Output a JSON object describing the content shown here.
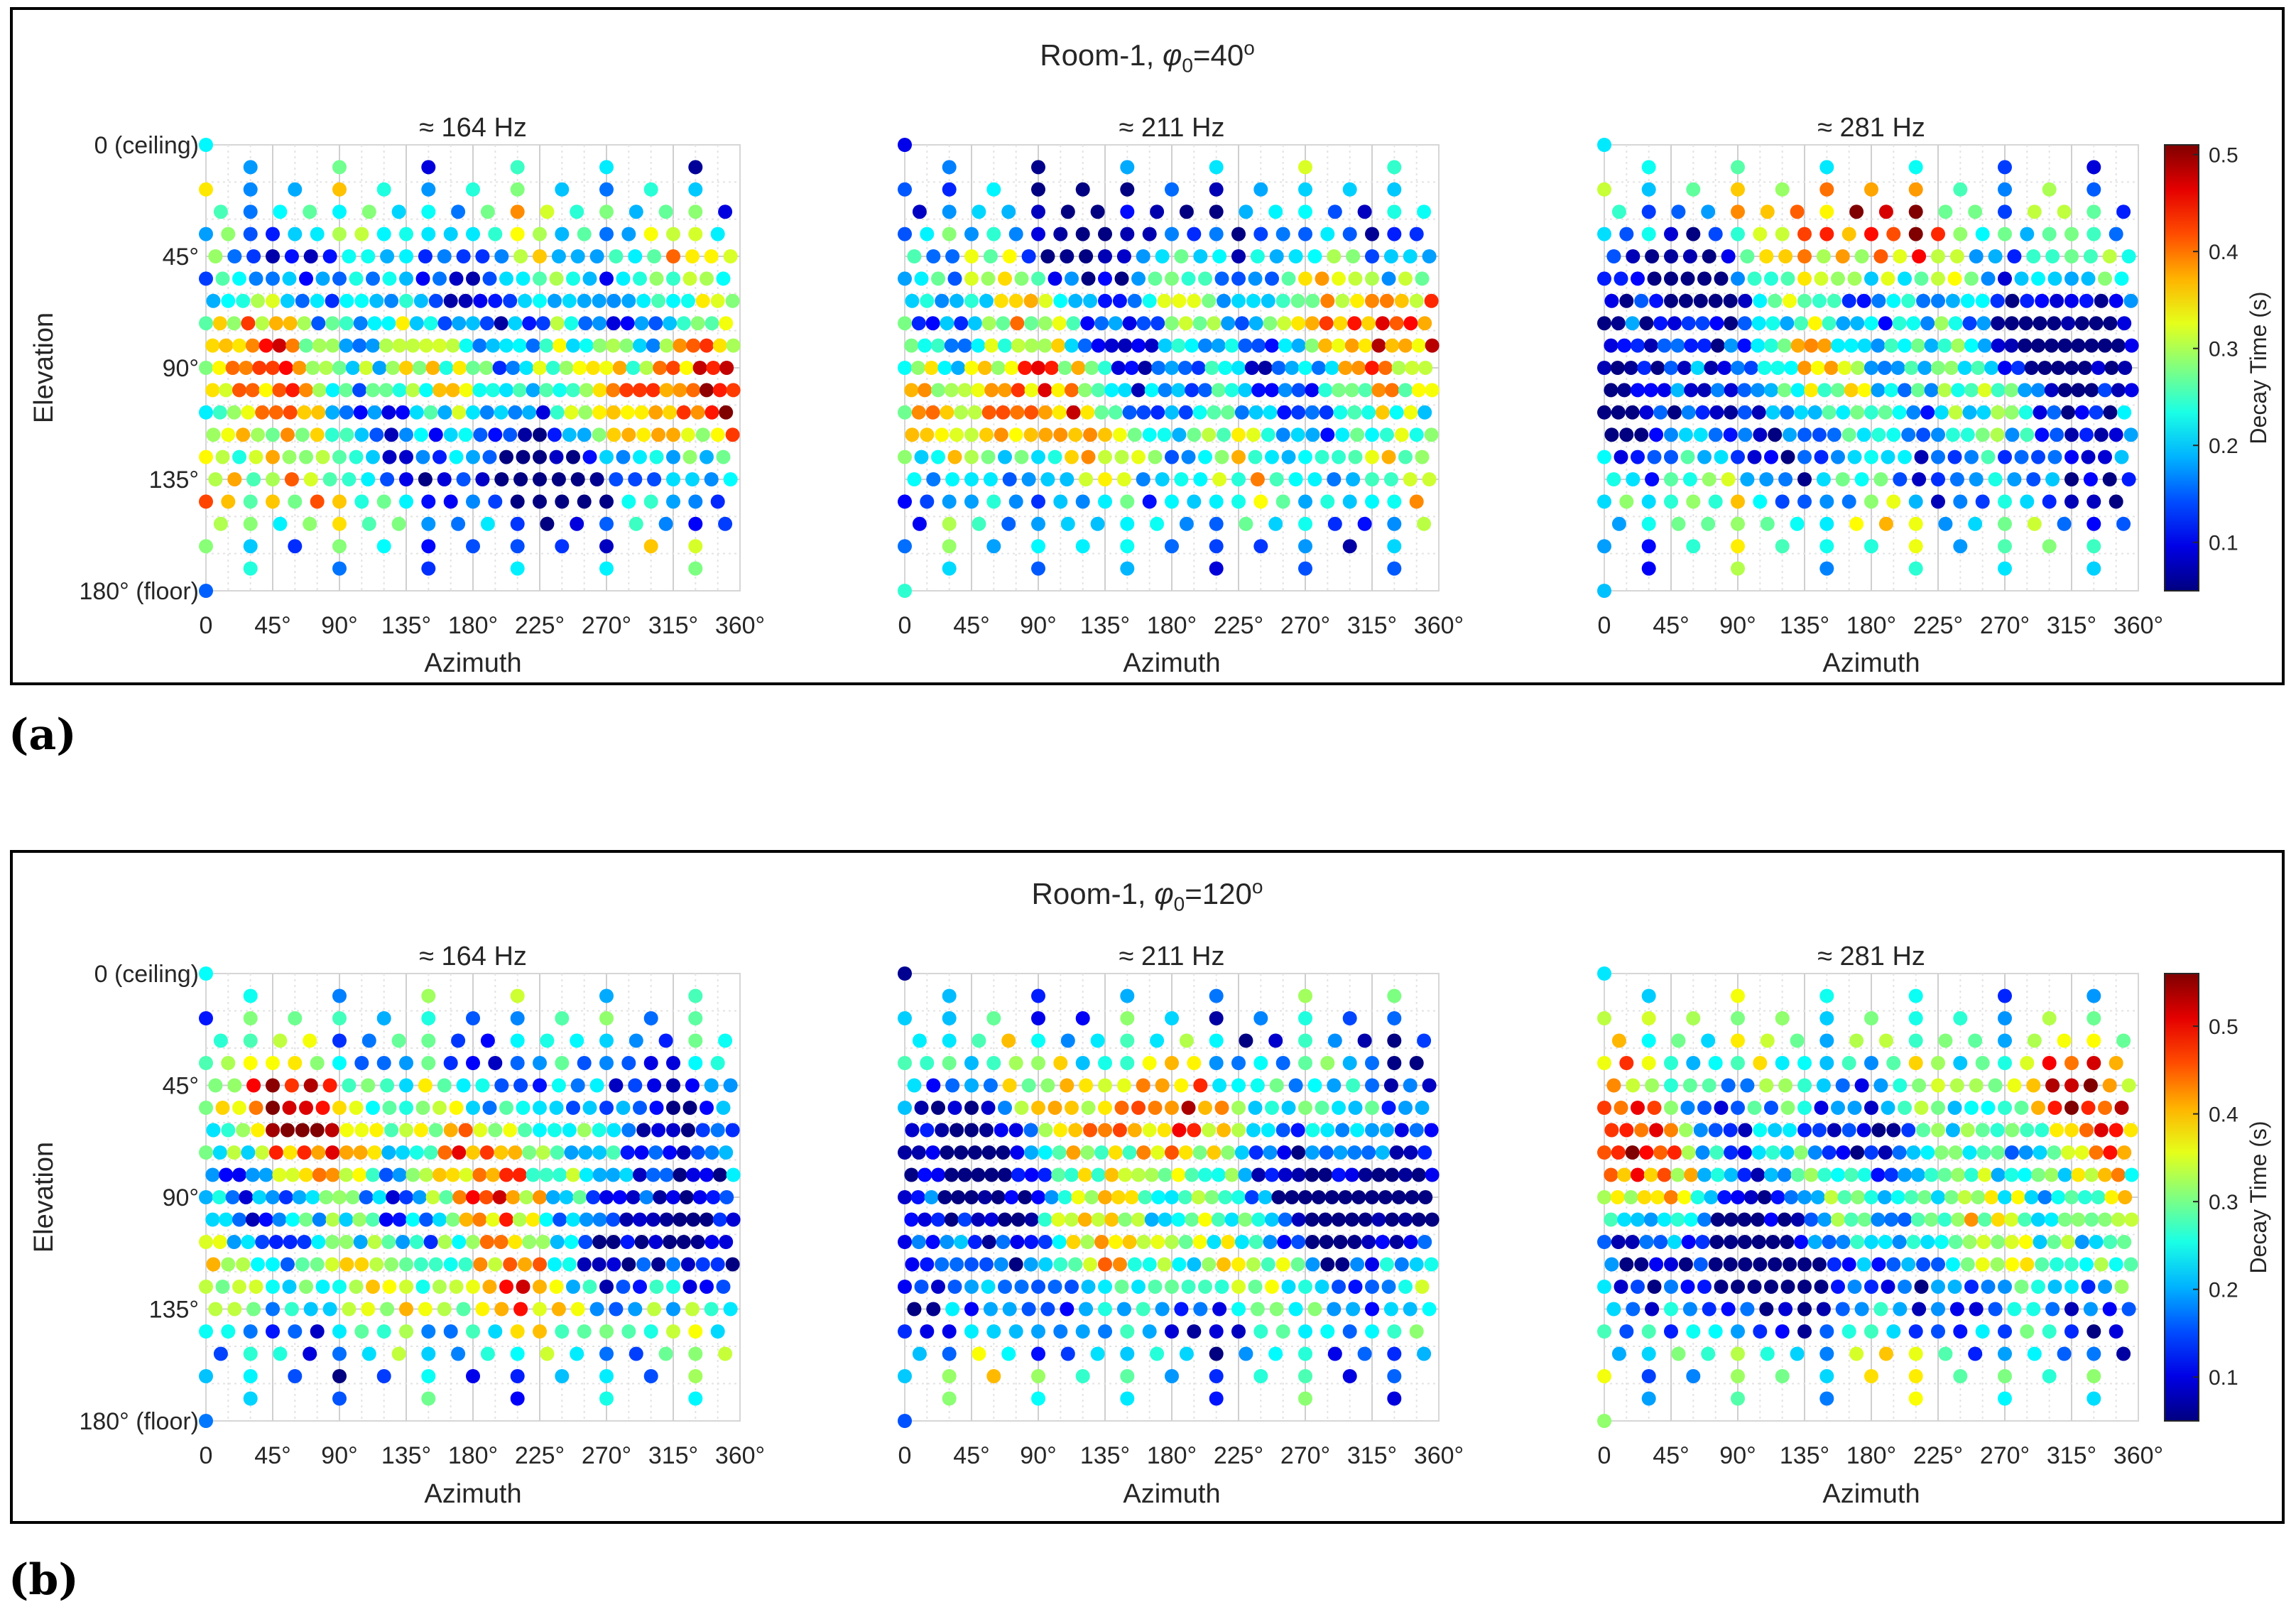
{
  "chart_data": [
    {
      "type": "scatter",
      "panel_label": "(a)",
      "title": "Room-1, φ0=40°",
      "title_parts": {
        "prefix": "Room-1, ",
        "symbol": "φ",
        "subscript": "0",
        "suffix": "=40",
        "superscript": "o"
      },
      "xlabel": "Azimuth",
      "ylabel": "Elevation",
      "xlim": [
        0,
        360
      ],
      "ylim": [
        0,
        180
      ],
      "xticks": [
        "0",
        "45°",
        "90°",
        "135°",
        "180°",
        "225°",
        "270°",
        "315°",
        "360°"
      ],
      "yticks": [
        "0 (ceiling)",
        "45°",
        "90°",
        "135°",
        "180° (floor)"
      ],
      "colorbar": {
        "label": "Decay Time (s)",
        "range": [
          0.05,
          0.51
        ],
        "ticks": [
          "0.1",
          "0.2",
          "0.3",
          "0.4",
          "0.5"
        ],
        "tick_values": [
          0.1,
          0.2,
          0.3,
          0.4,
          0.5
        ]
      },
      "subplots": [
        {
          "title": "≈ 164 Hz",
          "seed": 11,
          "hot_peaks": [
            {
              "az": 20,
              "el": 110
            },
            {
              "az": 330,
              "el": 100
            }
          ],
          "cold_peaks": [
            {
              "az": 220,
              "el": 150
            }
          ]
        },
        {
          "title": "≈ 211 Hz",
          "seed": 23,
          "hot_peaks": [
            {
              "az": 80,
              "el": 90
            },
            {
              "az": 350,
              "el": 80
            }
          ],
          "cold_peaks": [
            {
              "az": 120,
              "el": 40
            }
          ]
        },
        {
          "title": "≈ 281 Hz",
          "seed": 37,
          "hot_peaks": [
            {
              "az": 170,
              "el": 30
            }
          ],
          "cold_peaks": [
            {
              "az": 30,
              "el": 80
            },
            {
              "az": 330,
              "el": 90
            }
          ]
        }
      ]
    },
    {
      "type": "scatter",
      "panel_label": "(b)",
      "title": "Room-1, φ0=120°",
      "title_parts": {
        "prefix": "Room-1, ",
        "symbol": "φ",
        "subscript": "0",
        "suffix": "=120",
        "superscript": "o"
      },
      "xlabel": "Azimuth",
      "ylabel": "Elevation",
      "xlim": [
        0,
        360
      ],
      "ylim": [
        0,
        180
      ],
      "xticks": [
        "0",
        "45°",
        "90°",
        "135°",
        "180°",
        "225°",
        "270°",
        "315°",
        "360°"
      ],
      "yticks": [
        "0 (ceiling)",
        "45°",
        "90°",
        "135°",
        "180° (floor)"
      ],
      "colorbar": {
        "label": "Decay Time (s)",
        "range": [
          0.05,
          0.56
        ],
        "ticks": [
          "0.1",
          "0.2",
          "0.3",
          "0.4",
          "0.5"
        ],
        "tick_values": [
          0.1,
          0.2,
          0.3,
          0.4,
          0.5
        ]
      },
      "subplots": [
        {
          "title": "≈ 164 Hz",
          "seed": 53,
          "hot_peaks": [
            {
              "az": 60,
              "el": 50
            },
            {
              "az": 210,
              "el": 100
            }
          ],
          "cold_peaks": [
            {
              "az": 300,
              "el": 90
            }
          ]
        },
        {
          "title": "≈ 211 Hz",
          "seed": 71,
          "hot_peaks": [
            {
              "az": 150,
              "el": 70
            }
          ],
          "cold_peaks": [
            {
              "az": 320,
              "el": 90
            },
            {
              "az": 40,
              "el": 90
            }
          ]
        },
        {
          "title": "≈ 281 Hz",
          "seed": 89,
          "hot_peaks": [
            {
              "az": 15,
              "el": 60
            },
            {
              "az": 320,
              "el": 60
            }
          ],
          "cold_peaks": [
            {
              "az": 100,
              "el": 110
            }
          ]
        }
      ]
    }
  ]
}
